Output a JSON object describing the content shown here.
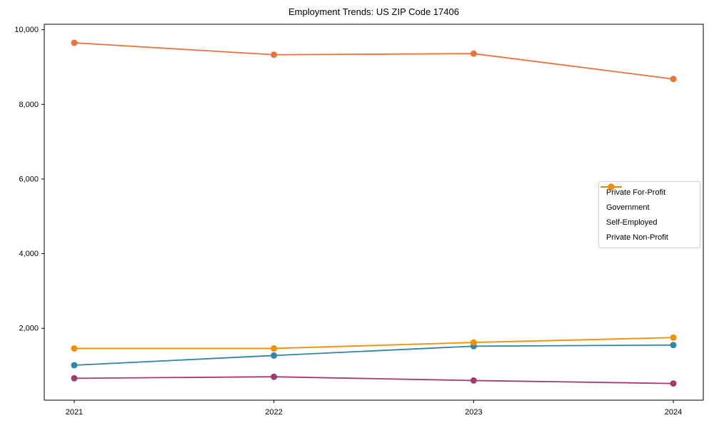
{
  "chart_data": {
    "type": "line",
    "title": "Employment Trends: US ZIP Code 17406",
    "x": [
      2021,
      2022,
      2023,
      2024
    ],
    "xtick_labels": [
      "2021",
      "2022",
      "2023",
      "2024"
    ],
    "series": [
      {
        "name": "Private For-Profit",
        "color": "#E8743B",
        "values": [
          9650,
          9330,
          9360,
          8680
        ]
      },
      {
        "name": "Government",
        "color": "#2E86AB",
        "values": [
          1010,
          1270,
          1520,
          1550
        ]
      },
      {
        "name": "Self-Employed",
        "color": "#A23B72",
        "values": [
          660,
          700,
          600,
          520
        ]
      },
      {
        "name": "Private Non-Profit",
        "color": "#F18F01",
        "values": [
          1460,
          1460,
          1620,
          1750
        ]
      }
    ],
    "yticks": [
      2000,
      4000,
      6000,
      8000,
      10000
    ],
    "ytick_labels": [
      "2,000",
      "4,000",
      "6,000",
      "8,000",
      "10,000"
    ],
    "ylim": [
      73,
      10147
    ],
    "xlim": [
      2020.85,
      2024.15
    ],
    "grid": false,
    "legend_position": "center right",
    "axis_color": "#000000",
    "background_color": "#ffffff"
  }
}
